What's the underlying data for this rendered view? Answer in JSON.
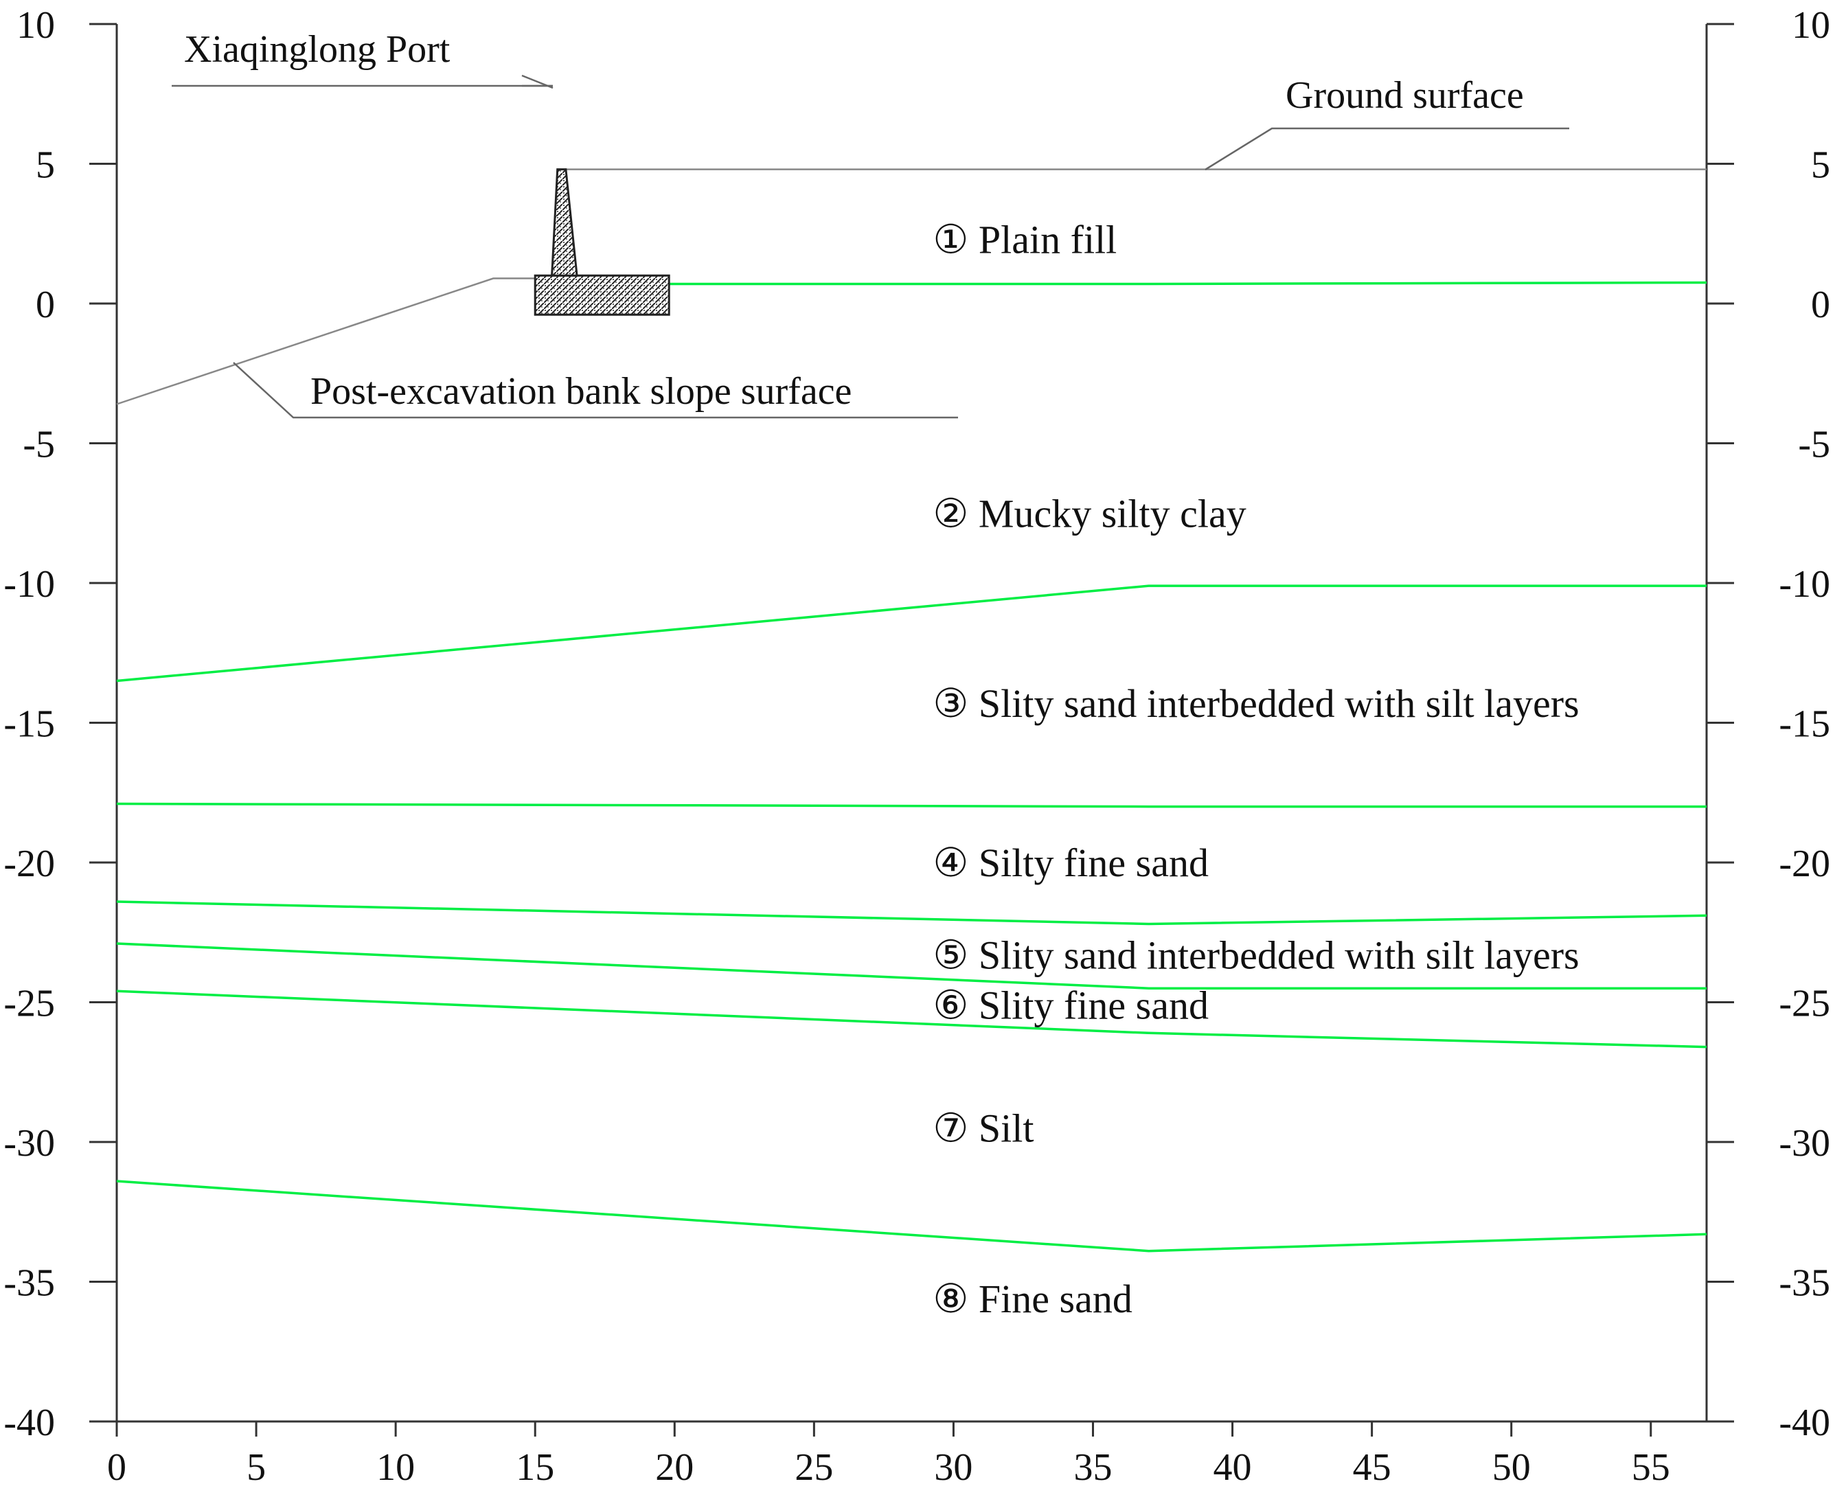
{
  "annotations": {
    "port": "Xiaqinglong Port",
    "ground_surface": "Ground surface",
    "bank_slope": "Post-excavation bank slope surface"
  },
  "colors": {
    "boundary": "#00ee44",
    "leader": "#666666",
    "axis": "#333333",
    "wall_fill": "#888888"
  },
  "chart_data": {
    "type": "line",
    "x_ticks": [
      "0",
      "5",
      "10",
      "15",
      "20",
      "25",
      "30",
      "35",
      "40",
      "45",
      "50",
      "55"
    ],
    "y_ticks": [
      "10",
      "5",
      "0",
      "-5",
      "-10",
      "-15",
      "-20",
      "-25",
      "-30",
      "-35",
      "-40"
    ],
    "x_range": [
      0,
      57
    ],
    "y_range": [
      -40,
      10
    ],
    "layers": [
      {
        "symbol": "①",
        "name": "Plain fill",
        "x": 30,
        "y": 2.3
      },
      {
        "symbol": "②",
        "name": "Mucky silty clay",
        "x": 30,
        "y": -7.5
      },
      {
        "symbol": "③",
        "name": "Slity sand interbedded with silt layers",
        "x": 30,
        "y": -14.3
      },
      {
        "symbol": "④",
        "name": "Silty fine sand",
        "x": 30,
        "y": -20
      },
      {
        "symbol": "⑤",
        "name": "Slity sand interbedded with silt layers",
        "x": 30,
        "y": -23.3
      },
      {
        "symbol": "⑥",
        "name": "Slity fine sand",
        "x": 30,
        "y": -25.1
      },
      {
        "symbol": "⑦",
        "name": "Silt",
        "x": 30,
        "y": -29.5
      },
      {
        "symbol": "⑧",
        "name": "Fine sand",
        "x": 30,
        "y": -35.6
      }
    ],
    "layer_boundaries": [
      [
        [
          19.8,
          0.7
        ],
        [
          37,
          0.7
        ],
        [
          57,
          0.75
        ]
      ],
      [
        [
          0,
          -13.5
        ],
        [
          37,
          -10.1
        ],
        [
          57,
          -10.1
        ]
      ],
      [
        [
          0,
          -17.9
        ],
        [
          37,
          -18.0
        ],
        [
          57,
          -18.0
        ]
      ],
      [
        [
          0,
          -21.4
        ],
        [
          37,
          -22.2
        ],
        [
          57,
          -21.9
        ]
      ],
      [
        [
          0,
          -22.9
        ],
        [
          37,
          -24.5
        ],
        [
          57,
          -24.5
        ]
      ],
      [
        [
          0,
          -24.6
        ],
        [
          37,
          -26.1
        ],
        [
          57,
          -26.6
        ]
      ],
      [
        [
          0,
          -31.4
        ],
        [
          37,
          -33.9
        ],
        [
          57,
          -33.3
        ]
      ]
    ],
    "ground_surface": [
      [
        16,
        4.8
      ],
      [
        57,
        4.8
      ]
    ],
    "slope_surface": [
      [
        0,
        -3.6
      ],
      [
        13.5,
        0.9
      ],
      [
        15,
        0.9
      ]
    ],
    "wall": {
      "stem": [
        [
          15.8,
          4.8
        ],
        [
          16.1,
          4.8
        ],
        [
          16.5,
          1.0
        ],
        [
          15.6,
          1.0
        ]
      ],
      "base": [
        [
          15.0,
          1.0
        ],
        [
          19.8,
          1.0
        ],
        [
          19.8,
          -0.4
        ],
        [
          15.0,
          -0.4
        ]
      ]
    }
  }
}
